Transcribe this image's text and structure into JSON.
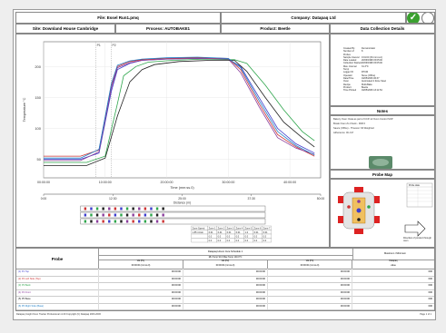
{
  "header": {
    "file": "File: Essel Run1.pmq",
    "company": "Company: Datapaq Ltd",
    "site": "Site: Downland House Cambridge",
    "process": "Process: AUTOBAKE1",
    "product": "Product: Beetle",
    "data_collection": "Data Collection Details"
  },
  "details": [
    {
      "k": "Created By",
      "v": "Demonstrator"
    },
    {
      "k": "Number of Probes",
      "v": "8"
    },
    {
      "k": "Sample Interval",
      "v": "0:01:00 (hh:mm:ss:t)"
    },
    {
      "k": "Date Loaded",
      "v": "20/09/1998 15:05:00"
    },
    {
      "k": "Collection Started",
      "v": "20/09/1998 15:05:00"
    },
    {
      "k": "Max. Internal Temp",
      "v": "31.3°C"
    },
    {
      "k": "Logger ID",
      "v": "R7CM"
    },
    {
      "k": "Operator",
      "v": "Steve (Office)"
    },
    {
      "k": "Date/Time",
      "v": "04/05/2006 06:37"
    },
    {
      "k": "Oven",
      "v": "Automated 2 Zone Steel"
    },
    {
      "k": "Recipe",
      "v": "Multi-Bake"
    },
    {
      "k": "Product",
      "v": "Beetle"
    },
    {
      "k": "Time Printed",
      "v": "04/05/2006 13:11:54"
    }
  ],
  "notes": {
    "title": "Notes",
    "lines": [
      "Bakery Oven: Data as part of CCP-12 Oven Control SOP",
      "Break Oven Zo Check - PAR 0",
      "Sauce (Office) - 'Process' Oil Weighted",
      "Adherence: 0C-0-P"
    ]
  },
  "probe_map": {
    "title": "Probe Map",
    "legend_title": "Probe data",
    "arrow_label": "Direction of product through oven"
  },
  "chart_data": {
    "type": "line",
    "x_ticks": [
      "00:00:00",
      "10:00:00",
      "20:00:00",
      "30:00:00",
      "40:00:00"
    ],
    "y_ticks": [
      "50",
      "100",
      "150",
      "200"
    ],
    "ylim": [
      20,
      240
    ],
    "xlim": [
      0,
      45
    ],
    "xlabel": "Time (mm:ss.0)",
    "ylabel": "Temperature °C",
    "markers": [
      "P1",
      "P2"
    ],
    "series": [
      {
        "color": "#3d3dcc",
        "x": [
          0,
          6,
          9,
          11,
          12,
          14,
          16,
          20,
          25,
          30,
          32,
          35,
          38,
          41,
          44
        ],
        "y": [
          50,
          50,
          60,
          160,
          195,
          205,
          210,
          212,
          213,
          212,
          200,
          150,
          100,
          75,
          60
        ]
      },
      {
        "color": "#cc3333",
        "x": [
          0,
          6,
          9,
          11,
          12,
          14,
          16,
          20,
          25,
          30,
          32,
          35,
          38,
          41,
          44
        ],
        "y": [
          55,
          55,
          65,
          170,
          200,
          208,
          211,
          213,
          214,
          213,
          195,
          140,
          90,
          70,
          55
        ]
      },
      {
        "color": "#2fa64d",
        "x": [
          0,
          7,
          10,
          12,
          13,
          15,
          17,
          21,
          26,
          31,
          33,
          36,
          39,
          42,
          44
        ],
        "y": [
          45,
          45,
          55,
          140,
          185,
          200,
          207,
          210,
          212,
          211,
          205,
          170,
          130,
          95,
          80
        ]
      },
      {
        "color": "#8a3d9c",
        "x": [
          0,
          6,
          9,
          11,
          12,
          14,
          16,
          20,
          25,
          30,
          32,
          35,
          38,
          41,
          44
        ],
        "y": [
          48,
          48,
          62,
          165,
          198,
          206,
          210,
          212,
          213,
          212,
          190,
          135,
          85,
          68,
          58
        ]
      },
      {
        "color": "#202020",
        "x": [
          0,
          7,
          10,
          12,
          14,
          16,
          18,
          22,
          27,
          31,
          33,
          36,
          39,
          42,
          44
        ],
        "y": [
          40,
          40,
          52,
          120,
          175,
          195,
          203,
          208,
          210,
          210,
          192,
          150,
          110,
          85,
          70
        ]
      },
      {
        "color": "#1f7fc7",
        "x": [
          0,
          6,
          9,
          11,
          12,
          14,
          16,
          20,
          25,
          30,
          32,
          35,
          38,
          41,
          44
        ],
        "y": [
          52,
          52,
          66,
          172,
          202,
          209,
          212,
          214,
          215,
          213,
          198,
          145,
          95,
          72,
          57
        ]
      }
    ]
  },
  "distance": {
    "label": "Distance (m)",
    "ticks": [
      "0:00",
      "12:30",
      "25:00",
      "37:30",
      "50:00"
    ]
  },
  "zone_table": {
    "header": [
      "Zone Speed",
      "Zone 1",
      "Zone 2",
      "Zone 3",
      "Zone 4",
      "Zone 5",
      "Zone 6",
      "Zone 7"
    ],
    "rows": [
      [
        "1.85 m/min",
        "6.01",
        "6.41",
        "6.01",
        "6.01",
        "1.0",
        "6.01",
        "6.01"
      ],
      [
        "",
        "0.0",
        "0.0",
        "0.0",
        "0.0",
        "0.0",
        "0.0",
        "0.0"
      ],
      [
        "",
        "0.0",
        "0.0",
        "0.0",
        "0.0",
        "0.0",
        "0.0",
        "0.0"
      ]
    ]
  },
  "probe_table": {
    "probe_label": "Probe",
    "group1": "Datapaq Hinum Cure Schedule 1",
    "group1_sub": "Min Temp 90.0 Max Temp 140.0°C",
    "group2": "Maximum / Minimum",
    "cols": [
      "Val (P1)",
      "Val (P2)",
      "Val (P3)",
      "Datapaq",
      "Maximum",
      "Max Time/Unit"
    ],
    "subcols": [
      "00:00:00 (mm:ss.0)",
      "00:00:00 (mm:ss.0)",
      "00:00:00 (mm:ss.0)",
      "value",
      "(°C)",
      "(mm:ss.0)"
    ],
    "rows": [
      {
        "name": "(1) P1 Top",
        "color": "#3d3dcc",
        "vals": [
          "00:00:00",
          "00:00:00",
          "00:00:00",
          "000",
          "219.1",
          "14:00:00"
        ]
      },
      {
        "name": "(2) P2 Left Side (Top)",
        "color": "#cc3333",
        "vals": [
          "00:00:00",
          "00:00:00",
          "00:00:00",
          "000",
          "219.7",
          "21:00:00"
        ]
      },
      {
        "name": "(3) P3 Back",
        "color": "#2fa64d",
        "vals": [
          "00:00:00",
          "00:00:00",
          "00:00:00",
          "000",
          "218.5",
          "22:00:00"
        ]
      },
      {
        "name": "(4) P4 Front",
        "color": "#8a3d9c",
        "vals": [
          "00:00:00",
          "00:00:00",
          "00:00:00",
          "000",
          "219.0",
          "21:00:00"
        ]
      },
      {
        "name": "(5) P5 Base",
        "color": "#202020",
        "vals": [
          "00:00:00",
          "00:00:00",
          "00:00:00",
          "000",
          "218.0",
          "22:00:00"
        ]
      },
      {
        "name": "(6) P6 Right Side (Base)",
        "color": "#1f7fc7",
        "vals": [
          "00:00:00",
          "00:00:00",
          "00:00:00",
          "000",
          "219.3",
          "21:00:00"
        ]
      }
    ]
  },
  "footer": {
    "left": "Datapaq Insight Oven Tracker Professional v1.00 Copyright (C) Datapaq 2003-2006",
    "right": "Page 1 of 1"
  },
  "colors": {
    "ok": "#3aa02f"
  }
}
